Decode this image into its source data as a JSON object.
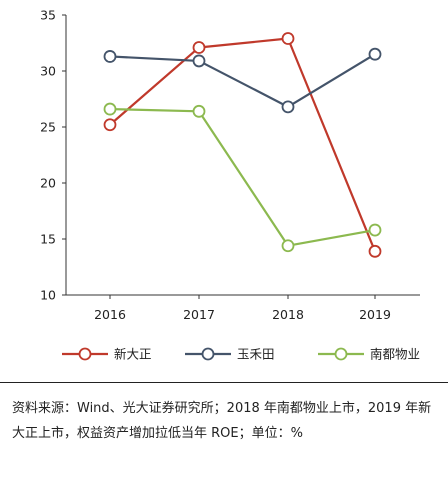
{
  "chart_data": {
    "type": "line",
    "x": [
      "2016",
      "2017",
      "2018",
      "2019"
    ],
    "ylim": [
      10,
      35
    ],
    "yticks": [
      "10",
      "15",
      "20",
      "25",
      "30",
      "35"
    ],
    "grid": false,
    "legend_position": "bottom",
    "series": [
      {
        "name": "新大正",
        "color": "#c0392b",
        "values": [
          25.2,
          32.1,
          32.9,
          13.9
        ]
      },
      {
        "name": "玉禾田",
        "color": "#44546a",
        "values": [
          31.3,
          30.9,
          26.8,
          31.5
        ]
      },
      {
        "name": "南都物业",
        "color": "#8cb94f",
        "values": [
          26.6,
          26.4,
          14.4,
          15.8
        ]
      }
    ]
  },
  "source_note": "资料来源：Wind、光大证券研究所；2018 年南都物业上市，2019 年新大正上市，权益资产增加拉低当年 ROE；单位：%"
}
